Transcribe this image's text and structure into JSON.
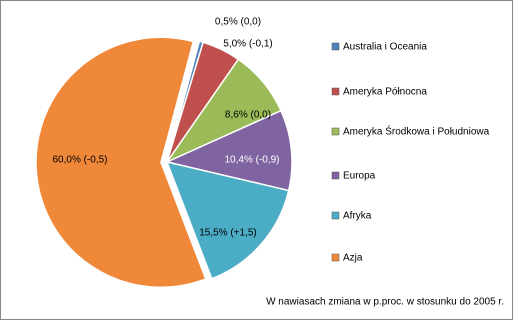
{
  "chart_data": {
    "type": "pie",
    "categories": [
      "Australia i Oceania",
      "Ameryka Północna",
      "Ameryka Środkowa i Południowa",
      "Europa",
      "Afryka",
      "Azja"
    ],
    "values": [
      0.5,
      5.0,
      8.6,
      10.4,
      15.5,
      60.0
    ],
    "value_labels": [
      "0,5% (0,0)",
      "5,0%  (-0,1)",
      "8,6% (0,0)",
      "10,4% (-0,9)",
      "15,5% (+1,5)",
      "60,0%  (-0,5)"
    ],
    "colors": [
      "#4f81bd",
      "#c0504d",
      "#9bbb59",
      "#8064a2",
      "#4bacc6",
      "#f0883a"
    ],
    "annotation": "W nawiasach zmiana w p.proc. w stosunku do 2005 r.",
    "legend": "right"
  }
}
